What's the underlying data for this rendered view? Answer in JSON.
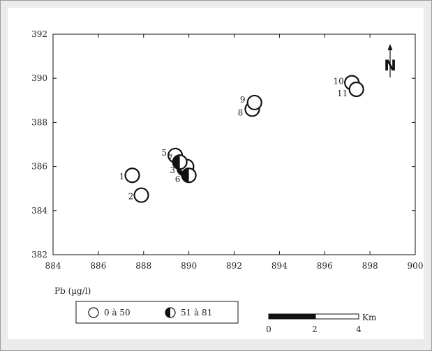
{
  "chart_data": {
    "type": "scatter",
    "title": "",
    "xlabel": "Pb (µg/l)",
    "ylabel": "",
    "xlim": [
      884,
      900
    ],
    "ylim": [
      382,
      392
    ],
    "xticks": [
      "884",
      "886",
      "888",
      "890",
      "892",
      "894",
      "896",
      "898",
      "900"
    ],
    "yticks": [
      "382",
      "384",
      "386",
      "388",
      "390",
      "392"
    ],
    "grid": false,
    "points": [
      {
        "id": "1",
        "x": 887.5,
        "y": 385.6,
        "class": "0 à 50"
      },
      {
        "id": "2",
        "x": 887.9,
        "y": 384.7,
        "class": "0 à 50"
      },
      {
        "id": "3",
        "x": 889.8,
        "y": 385.9,
        "class": "51 à 81"
      },
      {
        "id": "4",
        "x": 889.9,
        "y": 386.0,
        "class": "0 à 50"
      },
      {
        "id": "5",
        "x": 889.4,
        "y": 386.5,
        "class": "0 à 50"
      },
      {
        "id": "6",
        "x": 890.0,
        "y": 385.6,
        "class": "51 à 81"
      },
      {
        "id": "7",
        "x": 889.6,
        "y": 386.2,
        "class": "51 à 81"
      },
      {
        "id": "8",
        "x": 892.8,
        "y": 388.6,
        "class": "0 à 50"
      },
      {
        "id": "9",
        "x": 892.9,
        "y": 388.9,
        "class": "0 à 50"
      },
      {
        "id": "10",
        "x": 897.2,
        "y": 389.8,
        "class": "0 à 50"
      },
      {
        "id": "11",
        "x": 897.4,
        "y": 389.5,
        "class": "0 à 50"
      }
    ],
    "legend": {
      "placement": "bottom",
      "entries": [
        {
          "label": "0 à 50",
          "marker": "open-circle"
        },
        {
          "label": "51 à 81",
          "marker": "half-filled-circle"
        }
      ]
    },
    "scale_bar": {
      "ticks": [
        "0",
        "2",
        "4"
      ],
      "unit": "Km"
    },
    "north_arrow": {
      "label": "N",
      "icon": "north-arrow-icon"
    }
  },
  "colors": {
    "stroke": "#111111",
    "background": "#ebebeb",
    "panel": "#ffffff"
  }
}
